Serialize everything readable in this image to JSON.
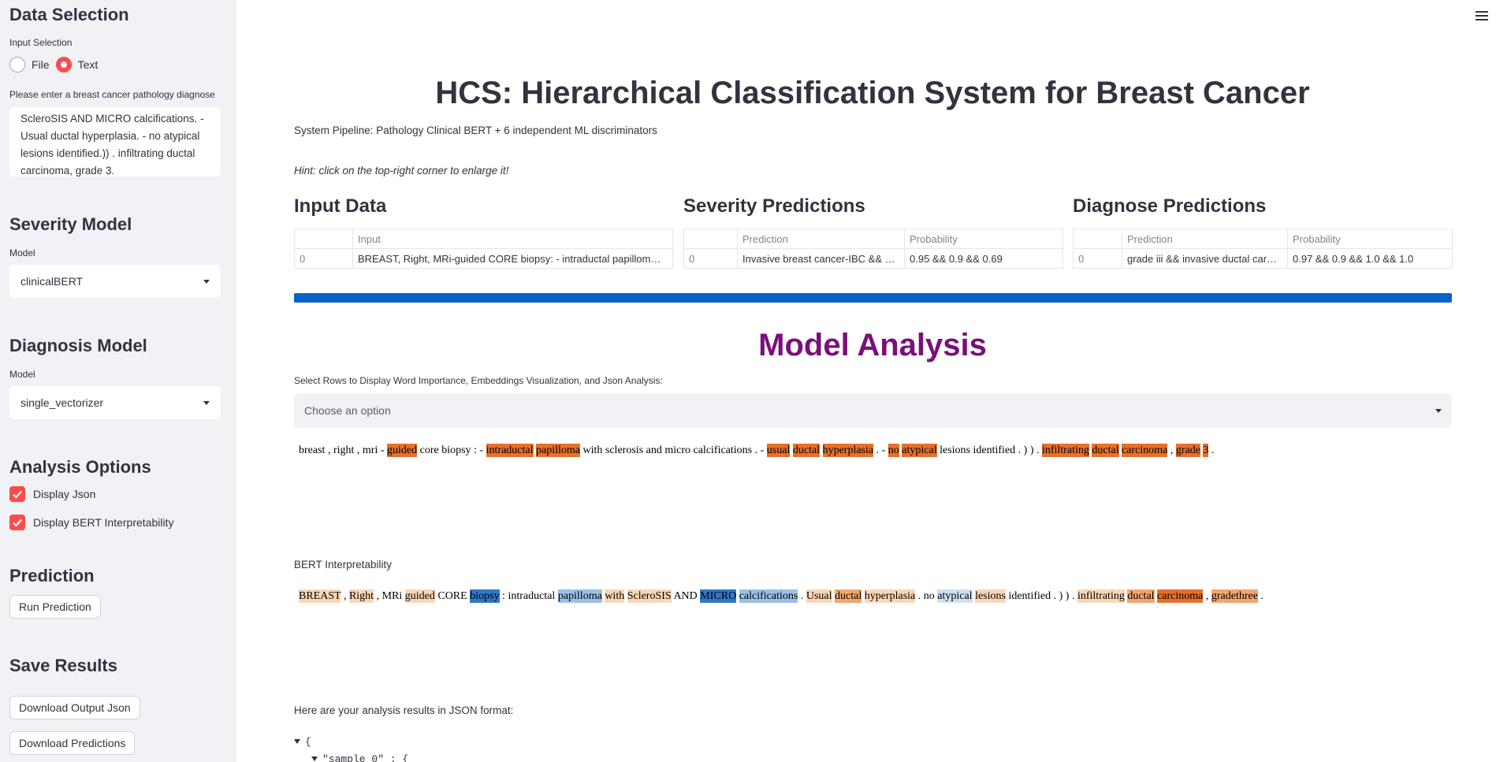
{
  "sidebar": {
    "data_selection": {
      "heading": "Data Selection",
      "input_label": "Input Selection",
      "options": [
        "File",
        "Text"
      ],
      "selected": "Text",
      "prompt": "Please enter a breast cancer pathology diagnose",
      "text_value": "ScleroSIS AND MICRO calcifications. - Usual ductal hyperplasia. - no atypical lesions identified.)) . infiltrating ductal carcinoma, grade 3."
    },
    "severity_model": {
      "heading": "Severity Model",
      "label": "Model",
      "value": "clinicalBERT"
    },
    "diagnosis_model": {
      "heading": "Diagnosis Model",
      "label": "Model",
      "value": "single_vectorizer"
    },
    "analysis_options": {
      "heading": "Analysis Options",
      "display_json": "Display Json",
      "display_bert": "Display BERT Interpretability"
    },
    "prediction": {
      "heading": "Prediction",
      "run_button": "Run Prediction"
    },
    "save_results": {
      "heading": "Save Results",
      "download_json": "Download Output Json",
      "download_predictions": "Download Predictions"
    }
  },
  "main": {
    "title": "HCS: Hierarchical Classification System for Breast Cancer",
    "pipeline": "System Pipeline: Pathology Clinical BERT + 6 independent ML discriminators",
    "hint": "Hint: click on the top-right corner to enlarge it!",
    "input_data": {
      "heading": "Input Data",
      "columns": [
        "",
        "Input"
      ],
      "row": [
        "0",
        "BREAST, Right, MRi-guided CORE biopsy: - intraductal papillom…"
      ]
    },
    "severity": {
      "heading": "Severity Predictions",
      "columns": [
        "",
        "Prediction",
        "Probability"
      ],
      "row": [
        "0",
        "Invasive breast cancer-IBC && H…",
        "0.95 && 0.9 && 0.69"
      ]
    },
    "diagnose": {
      "heading": "Diagnose Predictions",
      "columns": [
        "",
        "Prediction",
        "Probability"
      ],
      "row": [
        "0",
        "grade iii && invasive ductal car…",
        "0.97 && 0.9 && 1.0 && 1.0"
      ]
    },
    "progress": 1.0,
    "analysis_heading": "Model Analysis",
    "select_rows_label": "Select Rows to Display Word Importance, Embeddings Visualization, and Json Analysis:",
    "choose_placeholder": "Choose an option",
    "word_importance": [
      {
        "t": "breast",
        "w": 0
      },
      {
        "t": ",",
        "w": 0
      },
      {
        "t": "right",
        "w": 0
      },
      {
        "t": ",",
        "w": 0
      },
      {
        "t": "mri",
        "w": 0
      },
      {
        "t": "-",
        "w": 0
      },
      {
        "t": "guided",
        "w": 3
      },
      {
        "t": "core",
        "w": 0
      },
      {
        "t": "biopsy",
        "w": 0
      },
      {
        "t": ":",
        "w": 0
      },
      {
        "t": "-",
        "w": 0
      },
      {
        "t": "intraductal",
        "w": 3
      },
      {
        "t": "papilloma",
        "w": 3
      },
      {
        "t": "with",
        "w": 0
      },
      {
        "t": "sclerosis",
        "w": 0
      },
      {
        "t": "and",
        "w": 0
      },
      {
        "t": "micro",
        "w": 0
      },
      {
        "t": "calcifications",
        "w": 0
      },
      {
        "t": ".",
        "w": 0
      },
      {
        "t": "-",
        "w": 0
      },
      {
        "t": "usual",
        "w": 3
      },
      {
        "t": "ductal",
        "w": 3
      },
      {
        "t": "hyperplasia",
        "w": 3
      },
      {
        "t": ".",
        "w": 0
      },
      {
        "t": "-",
        "w": 0
      },
      {
        "t": "no",
        "w": 3
      },
      {
        "t": "atypical",
        "w": 3
      },
      {
        "t": "lesions",
        "w": 0
      },
      {
        "t": "identified",
        "w": 0
      },
      {
        "t": ".",
        "w": 0
      },
      {
        "t": ")",
        "w": 0
      },
      {
        "t": ")",
        "w": 0
      },
      {
        "t": ".",
        "w": 0
      },
      {
        "t": "infiltrating",
        "w": 3
      },
      {
        "t": "ductal",
        "w": 3
      },
      {
        "t": "carcinoma",
        "w": 3
      },
      {
        "t": ",",
        "w": 0
      },
      {
        "t": "grade",
        "w": 3
      },
      {
        "t": "3",
        "w": 3
      },
      {
        "t": ".",
        "w": 0
      }
    ],
    "bert_heading": "BERT Interpretability",
    "bert_tokens": [
      {
        "t": "BREAST",
        "c": "o1"
      },
      {
        "t": ",",
        "c": ""
      },
      {
        "t": "Right",
        "c": "o1"
      },
      {
        "t": ",",
        "c": ""
      },
      {
        "t": "MRi",
        "c": ""
      },
      {
        "t": "guided",
        "c": "o1"
      },
      {
        "t": "CORE",
        "c": ""
      },
      {
        "t": "biopsy",
        "c": "b3"
      },
      {
        "t": ":",
        "c": ""
      },
      {
        "t": "intraductal",
        "c": ""
      },
      {
        "t": "papilloma",
        "c": "b2"
      },
      {
        "t": "with",
        "c": "o1"
      },
      {
        "t": "ScleroSIS",
        "c": "o1"
      },
      {
        "t": "AND",
        "c": ""
      },
      {
        "t": "MICRO",
        "c": "b3"
      },
      {
        "t": "calcifications",
        "c": "b2"
      },
      {
        "t": ".",
        "c": ""
      },
      {
        "t": "Usual",
        "c": "o1"
      },
      {
        "t": "ductal",
        "c": "o2"
      },
      {
        "t": "hyperplasia",
        "c": "o1"
      },
      {
        "t": ".",
        "c": ""
      },
      {
        "t": "no",
        "c": ""
      },
      {
        "t": "atypical",
        "c": "b1"
      },
      {
        "t": "lesions",
        "c": "o1"
      },
      {
        "t": "identified",
        "c": ""
      },
      {
        "t": ".",
        "c": ""
      },
      {
        "t": ")",
        "c": ""
      },
      {
        "t": ")",
        "c": ""
      },
      {
        "t": ".",
        "c": ""
      },
      {
        "t": "infiltrating",
        "c": "o1"
      },
      {
        "t": "ductal",
        "c": "o2"
      },
      {
        "t": "carcinoma",
        "c": "o3"
      },
      {
        "t": ",",
        "c": ""
      },
      {
        "t": "gradethree",
        "c": "o2"
      },
      {
        "t": ".",
        "c": ""
      }
    ],
    "json_label": "Here are your analysis results in JSON format:",
    "json_open": "{",
    "json_key": "\"sample_0\" : {"
  },
  "colors": {
    "accent": "#ff4b4b",
    "progress": "#0a64c4",
    "analysis_title": "#7b0f7a"
  }
}
